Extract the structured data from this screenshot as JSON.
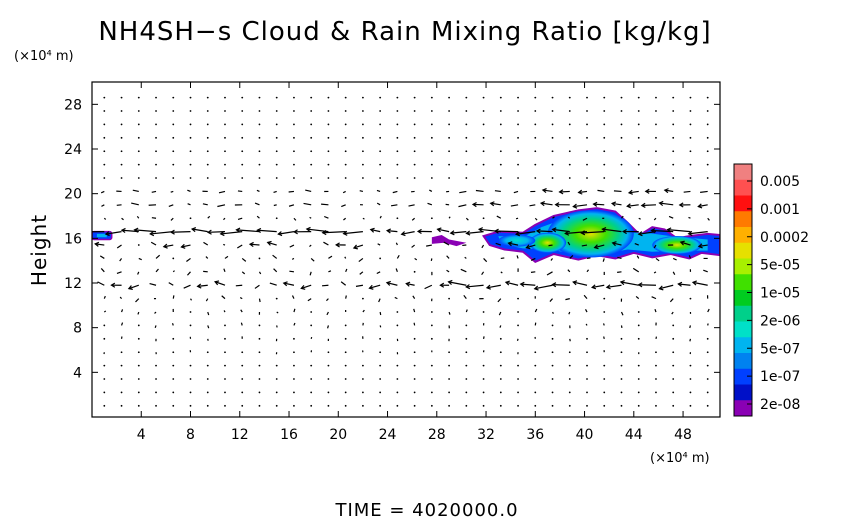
{
  "chart_data": {
    "type": "heatmap",
    "title": "NH4SH−s Cloud & Rain Mixing Ratio [kg/kg]",
    "ylabel": "Height",
    "y_unit": "(×10⁴ m)",
    "x_unit": "(×10⁴ m)",
    "xlim": [
      0,
      51
    ],
    "ylim": [
      0,
      30
    ],
    "x_ticks": [
      4,
      8,
      12,
      16,
      20,
      24,
      28,
      32,
      36,
      40,
      44,
      48
    ],
    "y_ticks": [
      4,
      8,
      12,
      16,
      20,
      24,
      28
    ],
    "footer": "TIME  =  4020000.0",
    "colorbar": {
      "labels": [
        "0.005",
        "0.001",
        "0.0002",
        "5e-05",
        "1e-05",
        "2e-06",
        "5e-07",
        "1e-07",
        "2e-08"
      ],
      "colors": [
        "#f08080",
        "#ff5050",
        "#ff1010",
        "#ff7a00",
        "#ffb000",
        "#e6e000",
        "#a8f000",
        "#40e000",
        "#00cc20",
        "#00d08a",
        "#00e0c8",
        "#00b4f0",
        "#0082f0",
        "#0040ff",
        "#0010c8",
        "#8a00b4"
      ]
    },
    "cloud_regions": [
      {
        "x": [
          0,
          1.6
        ],
        "y": [
          15.9,
          16.6
        ]
      },
      {
        "x": [
          27.5,
          30.5
        ],
        "y": [
          15.3,
          16.3
        ]
      },
      {
        "x": [
          31.8,
          51
        ],
        "y": [
          13.8,
          18.7
        ]
      }
    ],
    "wind_field": {
      "upper_jet_y": 19.5,
      "mid_jet_y": 16.3,
      "lower_jet_y": 11.8
    }
  }
}
